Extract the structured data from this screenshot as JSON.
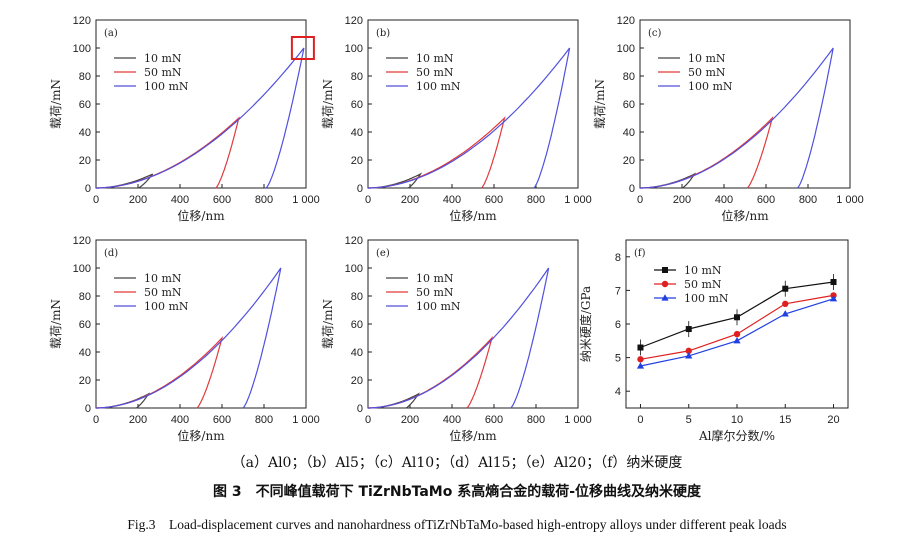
{
  "chart_data": [
    {
      "type": "line",
      "panel": "(a)",
      "xlabel": "位移/nm",
      "ylabel": "载荷/mN",
      "xlim": [
        0,
        1000
      ],
      "ylim": [
        0,
        120
      ],
      "xticks": [
        "0",
        "200",
        "400",
        "600",
        "800",
        "1 000"
      ],
      "yticks": [
        "0",
        "20",
        "40",
        "60",
        "80",
        "100",
        "120"
      ],
      "series": [
        {
          "name": "10 mN",
          "color": "#444444",
          "peak_depth": 270,
          "residual": 200,
          "peak_load": 10
        },
        {
          "name": "50 mN",
          "color": "#e03a3a",
          "peak_depth": 680,
          "residual": 570,
          "peak_load": 50
        },
        {
          "name": "100 mN",
          "color": "#5050e0",
          "peak_depth": 990,
          "residual": 810,
          "peak_load": 100
        }
      ],
      "highlight": "box at 100 mN peak"
    },
    {
      "type": "line",
      "panel": "(b)",
      "xlabel": "位移/nm",
      "ylabel": "载荷/mN",
      "xlim": [
        0,
        1000
      ],
      "ylim": [
        0,
        120
      ],
      "xticks": [
        "0",
        "200",
        "400",
        "600",
        "800",
        "1 000"
      ],
      "yticks": [
        "0",
        "20",
        "40",
        "60",
        "80",
        "100",
        "120"
      ],
      "series": [
        {
          "name": "10 mN",
          "color": "#444444",
          "peak_depth": 250,
          "residual": 190,
          "peak_load": 10
        },
        {
          "name": "50 mN",
          "color": "#e03a3a",
          "peak_depth": 650,
          "residual": 540,
          "peak_load": 50
        },
        {
          "name": "100 mN",
          "color": "#5050e0",
          "peak_depth": 960,
          "residual": 790,
          "peak_load": 100
        }
      ]
    },
    {
      "type": "line",
      "panel": "(c)",
      "xlabel": "位移/nm",
      "ylabel": "载荷/mN",
      "xlim": [
        0,
        1000
      ],
      "ylim": [
        0,
        120
      ],
      "xticks": [
        "0",
        "200",
        "400",
        "600",
        "800",
        "1 000"
      ],
      "yticks": [
        "0",
        "20",
        "40",
        "60",
        "80",
        "100",
        "120"
      ],
      "series": [
        {
          "name": "10 mN",
          "color": "#444444",
          "peak_depth": 260,
          "residual": 200,
          "peak_load": 10
        },
        {
          "name": "50 mN",
          "color": "#e03a3a",
          "peak_depth": 630,
          "residual": 510,
          "peak_load": 50
        },
        {
          "name": "100 mN",
          "color": "#5050e0",
          "peak_depth": 920,
          "residual": 750,
          "peak_load": 100
        }
      ]
    },
    {
      "type": "line",
      "panel": "(d)",
      "xlabel": "位移/nm",
      "ylabel": "载荷/mN",
      "xlim": [
        0,
        1000
      ],
      "ylim": [
        0,
        120
      ],
      "xticks": [
        "0",
        "200",
        "400",
        "600",
        "800",
        "1 000"
      ],
      "yticks": [
        "0",
        "20",
        "40",
        "60",
        "80",
        "100",
        "120"
      ],
      "series": [
        {
          "name": "10 mN",
          "color": "#444444",
          "peak_depth": 250,
          "residual": 190,
          "peak_load": 10
        },
        {
          "name": "50 mN",
          "color": "#e03a3a",
          "peak_depth": 600,
          "residual": 480,
          "peak_load": 50
        },
        {
          "name": "100 mN",
          "color": "#5050e0",
          "peak_depth": 880,
          "residual": 700,
          "peak_load": 100
        }
      ]
    },
    {
      "type": "line",
      "panel": "(e)",
      "xlabel": "位移/nm",
      "ylabel": "载荷/mN",
      "xlim": [
        0,
        1000
      ],
      "ylim": [
        0,
        120
      ],
      "xticks": [
        "0",
        "200",
        "400",
        "600",
        "800",
        "1 000"
      ],
      "yticks": [
        "0",
        "20",
        "40",
        "60",
        "80",
        "100",
        "120"
      ],
      "series": [
        {
          "name": "10 mN",
          "color": "#444444",
          "peak_depth": 240,
          "residual": 180,
          "peak_load": 10
        },
        {
          "name": "50 mN",
          "color": "#e03a3a",
          "peak_depth": 590,
          "residual": 470,
          "peak_load": 50
        },
        {
          "name": "100 mN",
          "color": "#5050e0",
          "peak_depth": 860,
          "residual": 680,
          "peak_load": 100
        }
      ]
    },
    {
      "type": "line",
      "panel": "(f)",
      "xlabel": "Al摩尔分数/%",
      "ylabel": "纳米硬度/GPa",
      "xlim": [
        -1.5,
        21.5
      ],
      "ylim": [
        3.5,
        8.5
      ],
      "xticks": [
        "0",
        "5",
        "10",
        "15",
        "20"
      ],
      "yticks": [
        "4",
        "5",
        "6",
        "7",
        "8"
      ],
      "x": [
        0,
        5,
        10,
        15,
        20
      ],
      "series": [
        {
          "name": "10 mN",
          "color": "#111111",
          "marker": "square",
          "values": [
            5.3,
            5.85,
            6.2,
            7.05,
            7.25
          ]
        },
        {
          "name": "50 mN",
          "color": "#e02020",
          "marker": "circle",
          "values": [
            4.95,
            5.2,
            5.7,
            6.6,
            6.85
          ]
        },
        {
          "name": "100 mN",
          "color": "#2040e0",
          "marker": "triangle",
          "values": [
            4.75,
            5.05,
            5.5,
            6.3,
            6.75
          ]
        }
      ]
    }
  ],
  "captions": {
    "subcaption": "（a）Al0；（b）Al5；（c）Al10；（d）Al15；（e）Al20；（f）纳米硬度",
    "title_cn": "图 3　不同峰值载荷下 TiZrNbTaMo 系高熵合金的载荷-位移曲线及纳米硬度",
    "title_en": "Fig.3　Load-displacement curves and nanohardness ofTiZrNbTaMo-based high-entropy alloys under different peak loads"
  }
}
